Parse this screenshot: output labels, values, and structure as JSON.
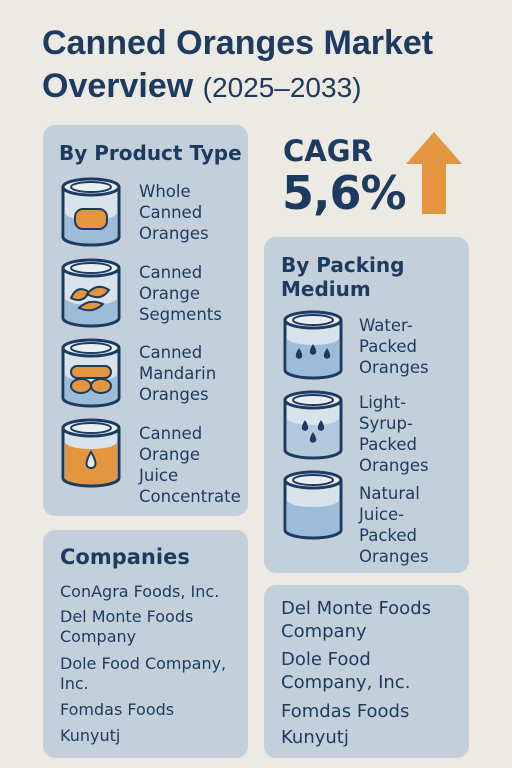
{
  "title": {
    "main": "Canned Oranges Market Overview",
    "years": "(2025–2033)"
  },
  "cagr": {
    "label": "CAGR",
    "value": "5,6%",
    "icon": "up-arrow-icon",
    "arrow_color": "#e3963f"
  },
  "product_type": {
    "heading": "By Product Type",
    "items": [
      {
        "label": "Whole\nCanned\nOranges",
        "icon": "can-whole-oranges-icon"
      },
      {
        "label": "Canned\nOrange\nSegments",
        "icon": "can-segments-icon"
      },
      {
        "label": "Canned\nMandarin\nOranges",
        "icon": "can-mandarin-icon"
      },
      {
        "label": "Canned\nOrange\nJuice\nConcentrate",
        "icon": "can-juice-icon"
      }
    ]
  },
  "packing_medium": {
    "heading": "By Packing\nMedium",
    "items": [
      {
        "label": "Water-\nPacked\nOranges",
        "icon": "can-water-icon"
      },
      {
        "label": "Light-\nSyrup-\nPacked\nOranges",
        "icon": "can-syrup-icon"
      },
      {
        "label": "Natural\nJuice-\nPacked\nOranges",
        "icon": "can-juice-packed-icon"
      }
    ]
  },
  "companies": {
    "heading": "Companies",
    "items": [
      "ConAgra Foods, Inc.",
      "Del Monte Foods\nCompany",
      "Dole Food Company,\nInc.",
      "Fomdas Foods",
      "Kunyutj"
    ]
  },
  "companies_right": {
    "items": [
      "Del Monte Foods\nCompany",
      "Dole Food\nCompany, Inc.",
      "Fomdas Foods",
      "Kunyutj"
    ]
  },
  "colors": {
    "panel": "#c3d0db",
    "navy": "#1d3b61",
    "orange": "#e3963f",
    "background": "#ede9e3"
  }
}
